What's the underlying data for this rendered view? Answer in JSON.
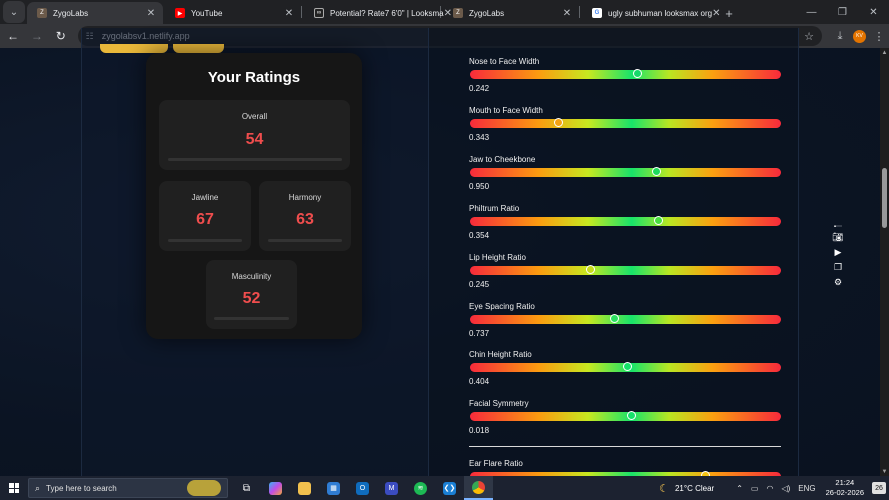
{
  "browser": {
    "tabs": [
      {
        "title": "ZygoLabs",
        "active": true,
        "favicon": "zygolabs-avatar"
      },
      {
        "title": "YouTube",
        "active": false,
        "favicon": "youtube-icon"
      },
      {
        "title": "Potential? Rate7 6'0\" | Looksma",
        "active": false,
        "favicon": "looksmax-icon"
      },
      {
        "title": "ZygoLabs",
        "active": false,
        "favicon": "zygolabs-avatar"
      },
      {
        "title": "ugly subhuman looksmax org",
        "active": false,
        "favicon": "google-icon"
      }
    ],
    "url": "zygolabsv1.netlify.app",
    "profile_initials": "KV"
  },
  "ratings": {
    "title": "Your Ratings",
    "overall": {
      "label": "Overall",
      "value": "54"
    },
    "jawline": {
      "label": "Jawline",
      "value": "67"
    },
    "harmony": {
      "label": "Harmony",
      "value": "63"
    },
    "masculinity": {
      "label": "Masculinity",
      "value": "52"
    }
  },
  "metrics": [
    {
      "name": "Nose to Face Width",
      "value": "0.242",
      "marker_position": 0.54,
      "marker_color": "#16d96a"
    },
    {
      "name": "Mouth to Face Width",
      "value": "0.343",
      "marker_position": 0.285,
      "marker_color": "#f5a313"
    },
    {
      "name": "Jaw to Cheekbone",
      "value": "0.950",
      "marker_position": 0.6,
      "marker_color": "#1edb5c"
    },
    {
      "name": "Philtrum Ratio",
      "value": "0.354",
      "marker_position": 0.608,
      "marker_color": "#47df3e"
    },
    {
      "name": "Lip Height Ratio",
      "value": "0.245",
      "marker_position": 0.39,
      "marker_color": "#c9dc1b"
    },
    {
      "name": "Eye Spacing Ratio",
      "value": "0.737",
      "marker_position": 0.467,
      "marker_color": "#2ce061"
    },
    {
      "name": "Chin Height Ratio",
      "value": "0.404",
      "marker_position": 0.507,
      "marker_color": "#16e36b"
    },
    {
      "name": "Facial Symmetry",
      "value": "0.018",
      "marker_position": 0.52,
      "marker_color": "#16e36b"
    },
    {
      "name": "Ear Flare Ratio",
      "value": "",
      "marker_position": 0.76,
      "marker_color": "#f5c413"
    }
  ],
  "taskbar": {
    "search_placeholder": "Type here to search",
    "weather": "21°C  Clear",
    "language": "ENG",
    "time": "21:24",
    "date": "26-02-2026",
    "notifications": "26"
  }
}
